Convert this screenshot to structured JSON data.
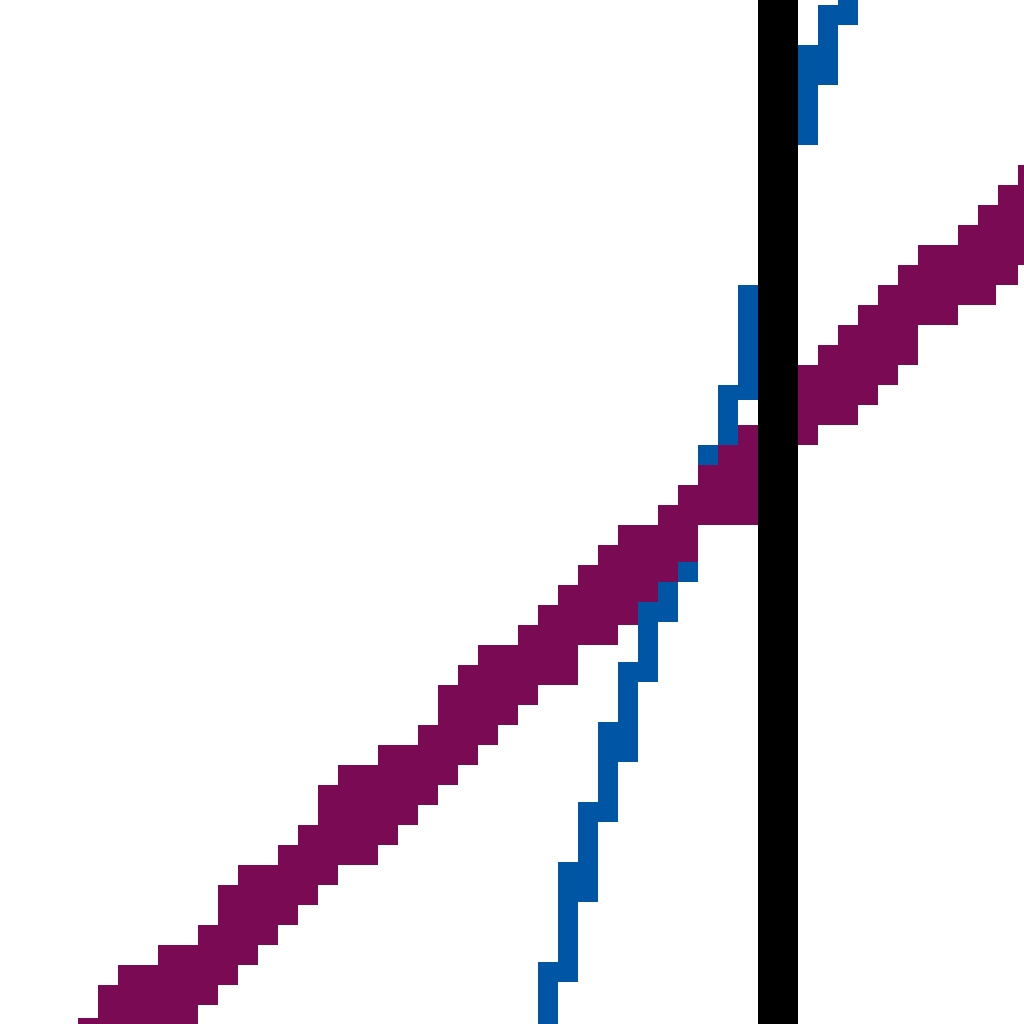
{
  "colors": {
    "background": "#ffffff",
    "thick_diagonal_line": "#7b0a55",
    "thin_jagged_line": "#0055a4",
    "vertical_bar": "#000000"
  },
  "elements": {
    "vertical_bar": "vertical-black-bar",
    "thick_line": "purple-diagonal-line",
    "thin_line": "blue-jagged-line"
  }
}
